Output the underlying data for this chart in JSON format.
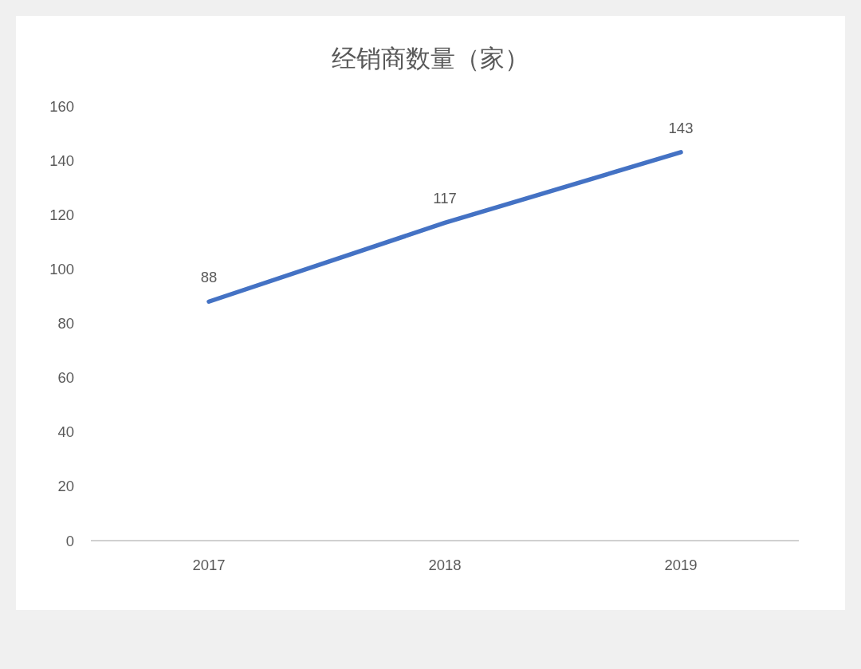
{
  "chart_data": {
    "type": "line",
    "title": "经销商数量（家）",
    "categories": [
      "2017",
      "2018",
      "2019"
    ],
    "series": [
      {
        "color": "#4472c4",
        "values": [
          88,
          117,
          143
        ]
      }
    ],
    "ylim": [
      0,
      160
    ],
    "yticks": [
      0,
      20,
      40,
      60,
      80,
      100,
      120,
      140,
      160
    ],
    "data_labels": true,
    "grid": false
  }
}
